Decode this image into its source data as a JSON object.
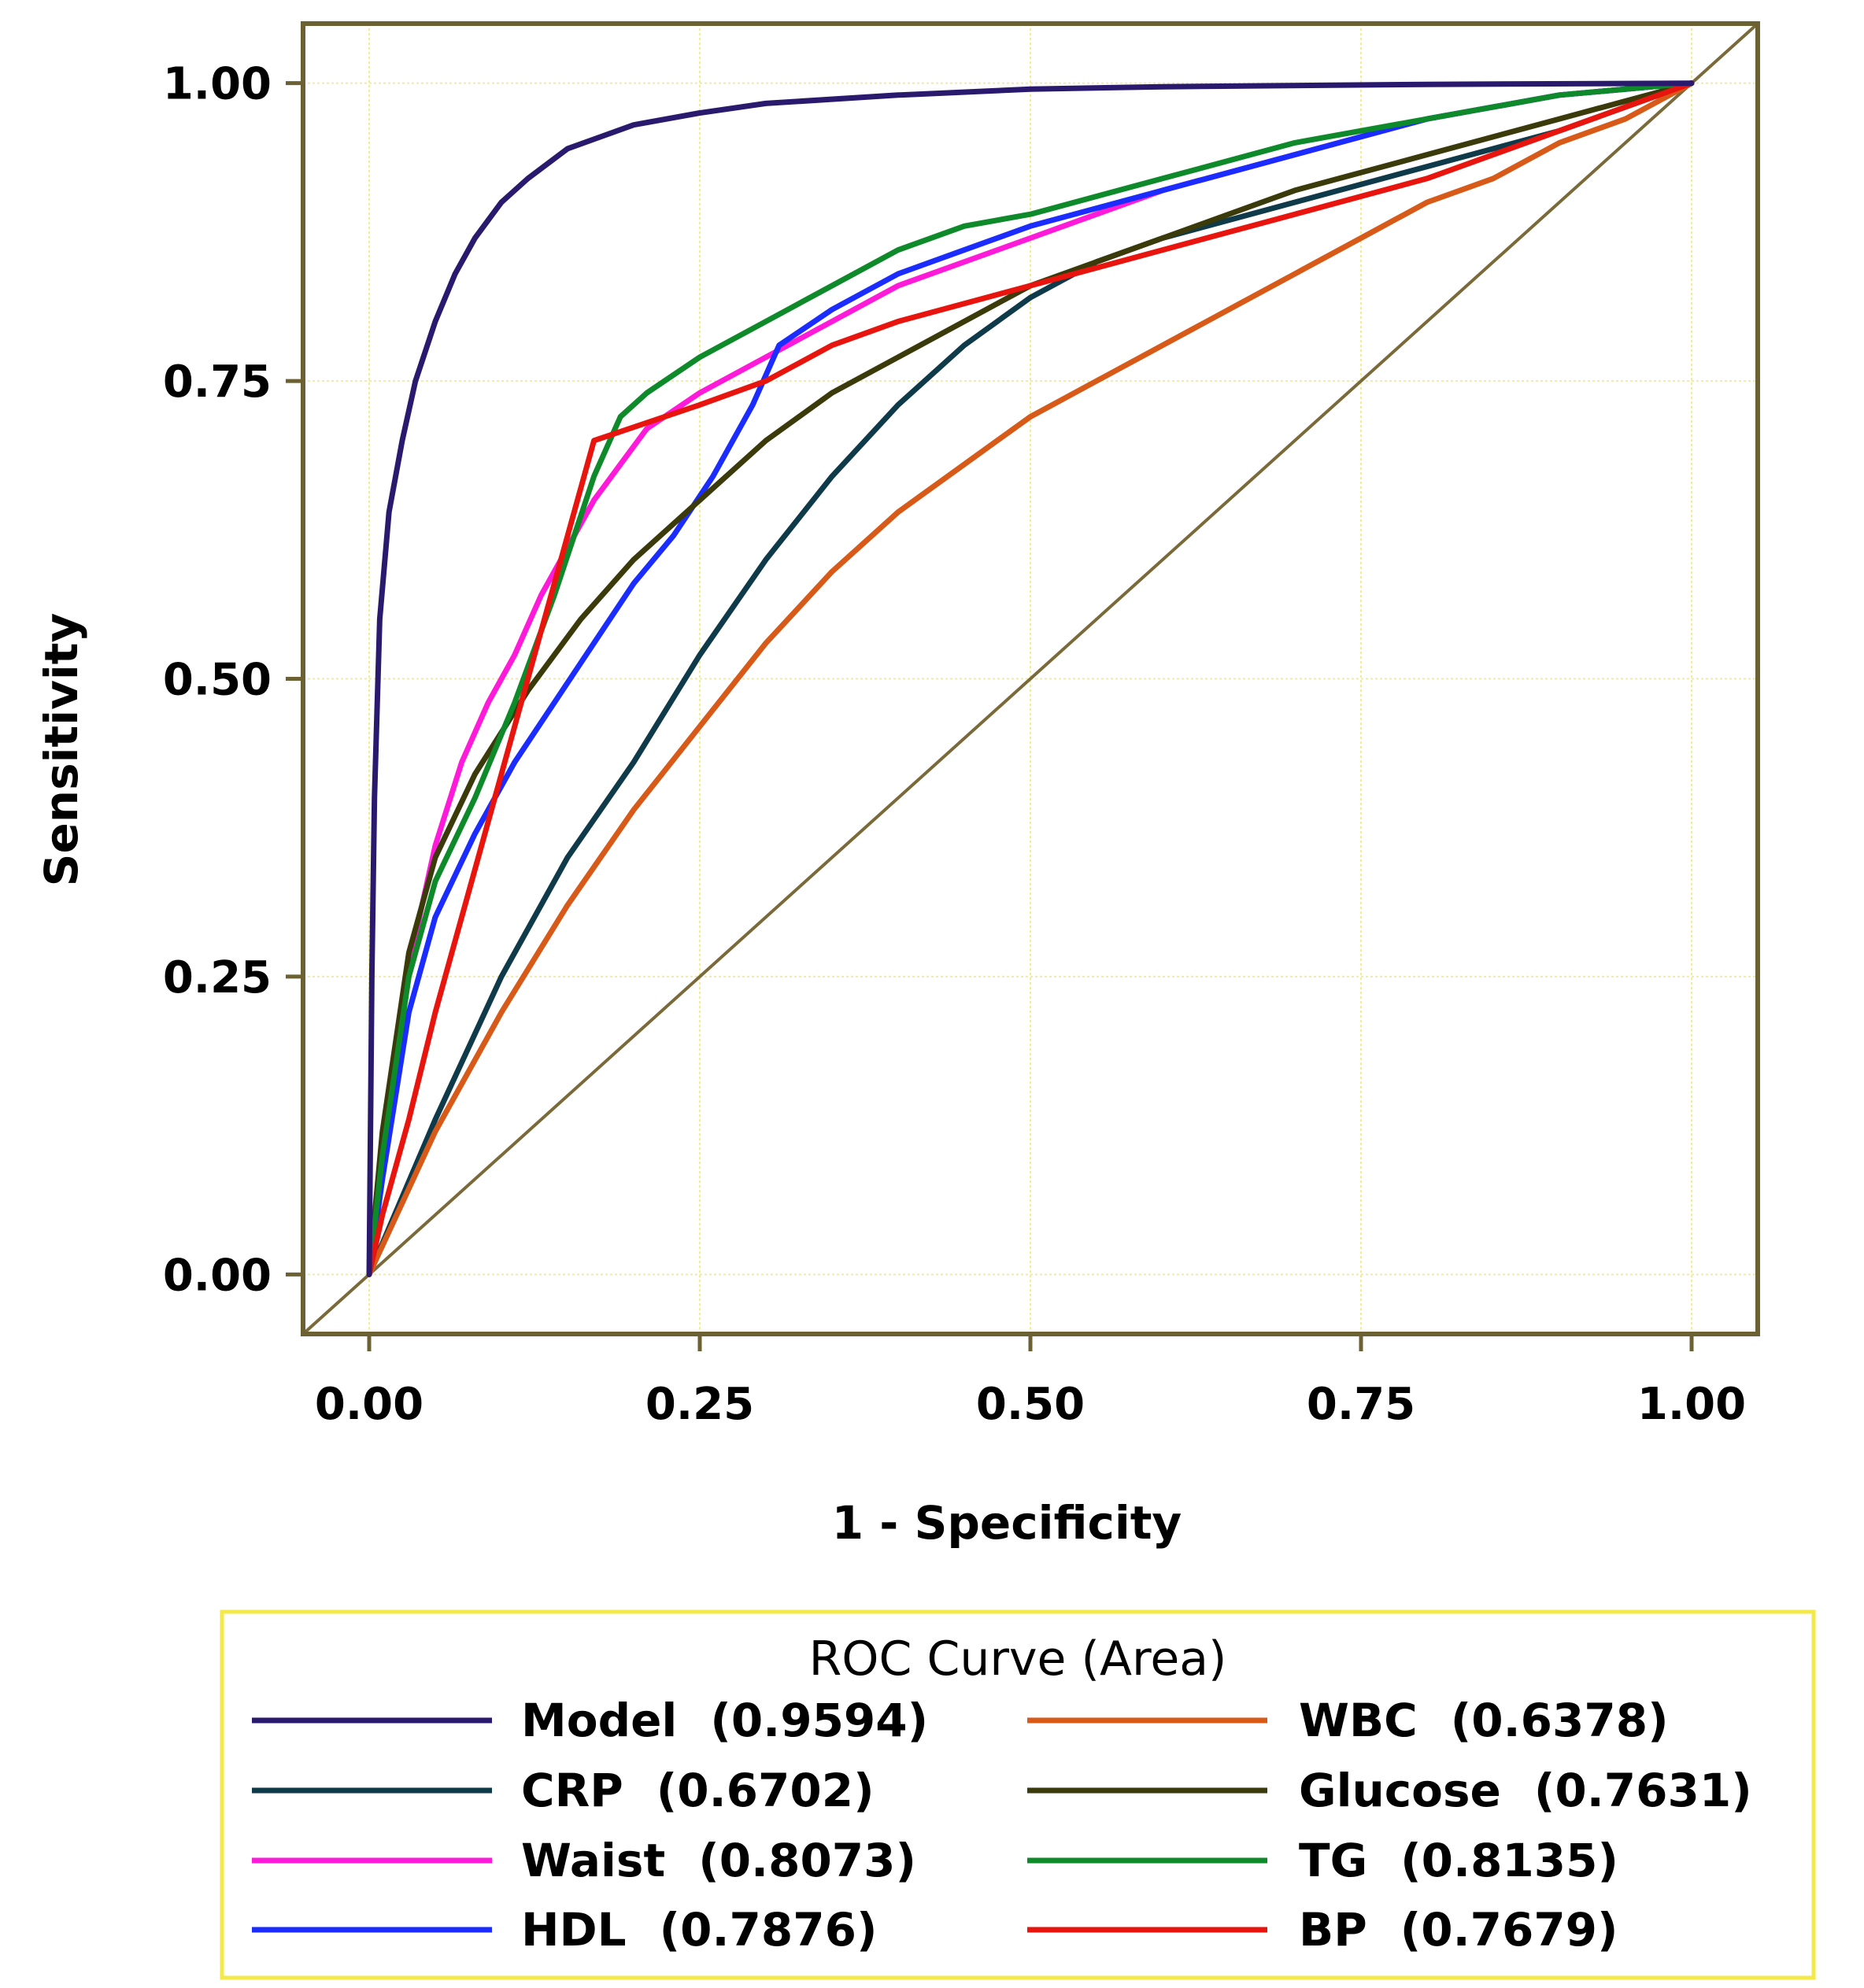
{
  "chart_data": {
    "type": "line",
    "xlabel": "1 - Specificity",
    "ylabel": "Sensitivity",
    "xlim": [
      -0.05,
      1.05
    ],
    "ylim": [
      -0.05,
      1.05
    ],
    "xticks": [
      0,
      0.25,
      0.5,
      0.75,
      1
    ],
    "yticks": [
      0,
      0.25,
      0.5,
      0.75,
      1
    ],
    "xtick_labels": [
      "0.00",
      "0.25",
      "0.50",
      "0.75",
      "1.00"
    ],
    "ytick_labels": [
      "0.00",
      "0.25",
      "0.50",
      "0.75",
      "1.00"
    ],
    "grid": true,
    "legend_title": "ROC Curve (Area)",
    "legend_position": "bottom",
    "reference_line": {
      "x": [
        -0.05,
        1.05
      ],
      "y": [
        -0.05,
        1.05
      ],
      "color": "#7a6a3a"
    },
    "series": [
      {
        "name": "Model",
        "auc": "(0.9594)",
        "color": "#2a1a6e",
        "x": [
          0,
          0.002,
          0.004,
          0.008,
          0.015,
          0.025,
          0.035,
          0.05,
          0.065,
          0.08,
          0.1,
          0.12,
          0.15,
          0.2,
          0.25,
          0.3,
          0.4,
          0.5,
          0.6,
          0.8,
          1.0
        ],
        "y": [
          0,
          0.25,
          0.4,
          0.55,
          0.64,
          0.7,
          0.75,
          0.8,
          0.84,
          0.87,
          0.9,
          0.92,
          0.945,
          0.965,
          0.975,
          0.983,
          0.99,
          0.995,
          0.997,
          0.999,
          1.0
        ]
      },
      {
        "name": "CRP",
        "auc": "(0.6702)",
        "color": "#0f3a4a",
        "x": [
          0,
          0.05,
          0.1,
          0.15,
          0.2,
          0.25,
          0.3,
          0.35,
          0.4,
          0.45,
          0.5,
          0.55,
          0.6,
          0.7,
          0.8,
          0.9,
          1.0
        ],
        "y": [
          0,
          0.13,
          0.25,
          0.35,
          0.43,
          0.52,
          0.6,
          0.67,
          0.73,
          0.78,
          0.82,
          0.85,
          0.87,
          0.9,
          0.93,
          0.96,
          1.0
        ]
      },
      {
        "name": "Waist",
        "auc": "(0.8073)",
        "color": "#ff1ad9",
        "x": [
          0,
          0.01,
          0.03,
          0.05,
          0.07,
          0.09,
          0.11,
          0.13,
          0.15,
          0.17,
          0.19,
          0.21,
          0.25,
          0.3,
          0.35,
          0.4,
          0.5,
          0.6,
          0.7,
          0.8,
          0.9,
          1.0
        ],
        "y": [
          0,
          0.1,
          0.26,
          0.36,
          0.43,
          0.48,
          0.52,
          0.57,
          0.61,
          0.65,
          0.68,
          0.71,
          0.74,
          0.77,
          0.8,
          0.83,
          0.87,
          0.91,
          0.94,
          0.97,
          0.99,
          1.0
        ]
      },
      {
        "name": "HDL",
        "auc": "(0.7876)",
        "color": "#1a2cff",
        "x": [
          0,
          0.01,
          0.03,
          0.05,
          0.08,
          0.11,
          0.14,
          0.17,
          0.2,
          0.23,
          0.26,
          0.29,
          0.31,
          0.35,
          0.4,
          0.45,
          0.5,
          0.6,
          0.7,
          0.8,
          0.9,
          1.0
        ],
        "y": [
          0,
          0.08,
          0.22,
          0.3,
          0.37,
          0.43,
          0.48,
          0.53,
          0.58,
          0.62,
          0.67,
          0.73,
          0.78,
          0.81,
          0.84,
          0.86,
          0.88,
          0.91,
          0.94,
          0.97,
          0.99,
          1.0
        ]
      },
      {
        "name": "WBC",
        "auc": "(0.6378)",
        "color": "#d85a18",
        "x": [
          0,
          0.05,
          0.1,
          0.15,
          0.2,
          0.25,
          0.3,
          0.35,
          0.4,
          0.45,
          0.5,
          0.55,
          0.6,
          0.65,
          0.7,
          0.75,
          0.8,
          0.85,
          0.9,
          0.95,
          1.0
        ],
        "y": [
          0,
          0.12,
          0.22,
          0.31,
          0.39,
          0.46,
          0.53,
          0.59,
          0.64,
          0.68,
          0.72,
          0.75,
          0.78,
          0.81,
          0.84,
          0.87,
          0.9,
          0.92,
          0.95,
          0.97,
          1.0
        ]
      },
      {
        "name": "Glucose",
        "auc": "(0.7631)",
        "color": "#3a3a0a",
        "x": [
          0,
          0.01,
          0.03,
          0.05,
          0.08,
          0.12,
          0.16,
          0.2,
          0.25,
          0.3,
          0.35,
          0.4,
          0.5,
          0.6,
          0.7,
          0.8,
          0.9,
          1.0
        ],
        "y": [
          0,
          0.12,
          0.27,
          0.35,
          0.42,
          0.49,
          0.55,
          0.6,
          0.65,
          0.7,
          0.74,
          0.77,
          0.83,
          0.87,
          0.91,
          0.94,
          0.97,
          1.0
        ]
      },
      {
        "name": "TG",
        "auc": "(0.8135)",
        "color": "#0e8a2a",
        "x": [
          0,
          0.01,
          0.03,
          0.05,
          0.08,
          0.11,
          0.14,
          0.17,
          0.19,
          0.21,
          0.25,
          0.3,
          0.35,
          0.4,
          0.45,
          0.5,
          0.6,
          0.7,
          0.8,
          0.9,
          1.0
        ],
        "y": [
          0,
          0.1,
          0.25,
          0.33,
          0.4,
          0.48,
          0.57,
          0.67,
          0.72,
          0.74,
          0.77,
          0.8,
          0.83,
          0.86,
          0.88,
          0.89,
          0.92,
          0.95,
          0.97,
          0.99,
          1.0
        ]
      },
      {
        "name": "BP",
        "auc": "(0.7679)",
        "color": "#e8150e",
        "x": [
          0,
          0.01,
          0.03,
          0.05,
          0.07,
          0.09,
          0.11,
          0.13,
          0.15,
          0.17,
          0.25,
          0.3,
          0.35,
          0.4,
          0.5,
          0.6,
          0.7,
          0.8,
          0.9,
          1.0
        ],
        "y": [
          0,
          0.05,
          0.13,
          0.22,
          0.3,
          0.38,
          0.46,
          0.54,
          0.62,
          0.7,
          0.73,
          0.75,
          0.78,
          0.8,
          0.83,
          0.86,
          0.89,
          0.92,
          0.96,
          1.0
        ]
      }
    ]
  }
}
